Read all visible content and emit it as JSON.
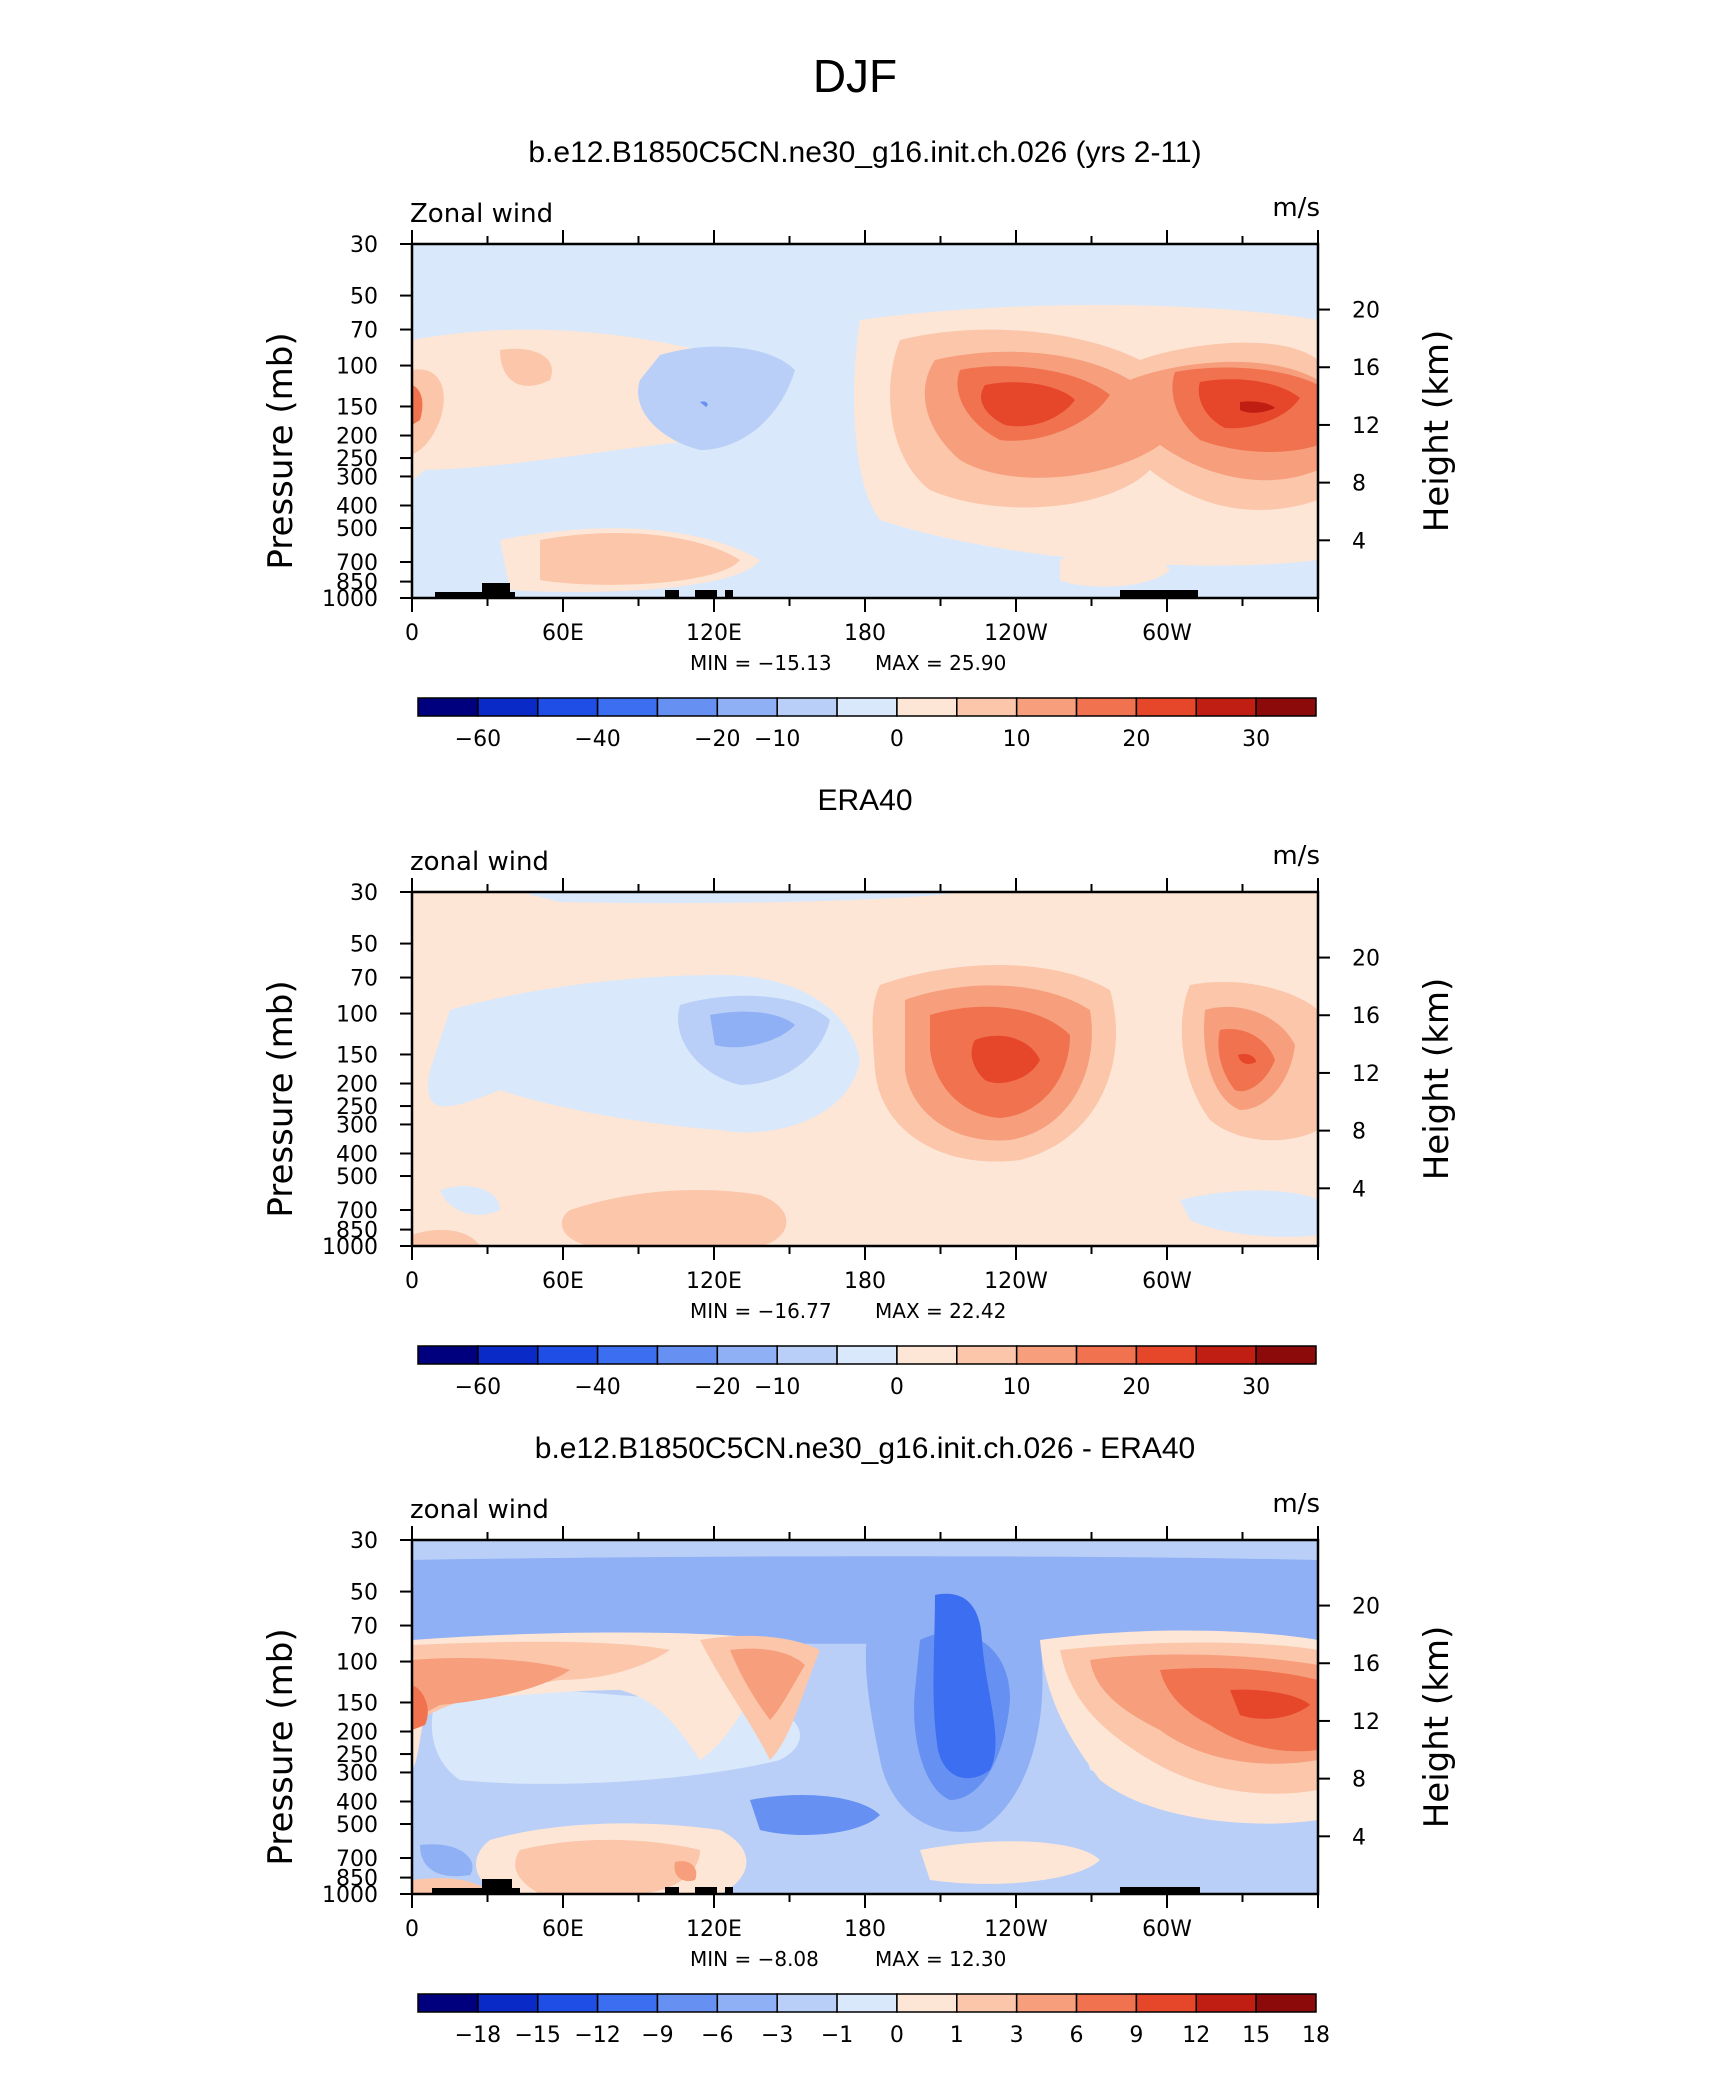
{
  "figure_title": "DJF",
  "colors": {
    "scale": [
      "#00007f",
      "#0a2ac8",
      "#1e4ee6",
      "#3c6ef2",
      "#6690f2",
      "#8fb0f4",
      "#b9cff7",
      "#d9e8fa",
      "#fde6d6",
      "#fbc6aa",
      "#f79e7c",
      "#f1724e",
      "#e6462a",
      "#c01e12",
      "#8c0a0a"
    ]
  },
  "chart_data": [
    {
      "type": "contour",
      "title": "b.e12.B1850C5CN.ne30_g16.init.ch.026 (yrs 2-11)",
      "left_label": "Zonal wind",
      "right_label": "m/s",
      "ylabel": "Pressure (mb)",
      "ylabel2": "Height (km)",
      "xticks": [
        "0",
        "60E",
        "120E",
        "180",
        "120W",
        "60W"
      ],
      "yticks": [
        "30",
        "50",
        "70",
        "100",
        "150",
        "200",
        "250",
        "300",
        "400",
        "500",
        "700",
        "850",
        "1000"
      ],
      "y2ticks": [
        "20",
        "16",
        "12",
        "8",
        "4"
      ],
      "min_label": "MIN = −15.13",
      "max_label": "MAX = 25.90",
      "min": -15.13,
      "max": 25.9,
      "colorbar_labels": [
        "−60",
        "−40",
        "−20",
        "−10",
        "0",
        "10",
        "20",
        "30"
      ]
    },
    {
      "type": "contour",
      "title": "ERA40",
      "left_label": "zonal wind",
      "right_label": "m/s",
      "ylabel": "Pressure (mb)",
      "ylabel2": "Height (km)",
      "xticks": [
        "0",
        "60E",
        "120E",
        "180",
        "120W",
        "60W"
      ],
      "yticks": [
        "30",
        "50",
        "70",
        "100",
        "150",
        "200",
        "250",
        "300",
        "400",
        "500",
        "700",
        "850",
        "1000"
      ],
      "y2ticks": [
        "20",
        "16",
        "12",
        "8",
        "4"
      ],
      "min_label": "MIN = −16.77",
      "max_label": "MAX = 22.42",
      "min": -16.77,
      "max": 22.42,
      "colorbar_labels": [
        "−60",
        "−40",
        "−20",
        "−10",
        "0",
        "10",
        "20",
        "30"
      ]
    },
    {
      "type": "contour",
      "title": "b.e12.B1850C5CN.ne30_g16.init.ch.026 - ERA40",
      "left_label": "zonal wind",
      "right_label": "m/s",
      "ylabel": "Pressure (mb)",
      "ylabel2": "Height (km)",
      "xticks": [
        "0",
        "60E",
        "120E",
        "180",
        "120W",
        "60W"
      ],
      "yticks": [
        "30",
        "50",
        "70",
        "100",
        "150",
        "200",
        "250",
        "300",
        "400",
        "500",
        "700",
        "850",
        "1000"
      ],
      "y2ticks": [
        "20",
        "16",
        "12",
        "8",
        "4"
      ],
      "min_label": "MIN = −8.08",
      "max_label": "MAX = 12.30",
      "min": -8.08,
      "max": 12.3,
      "colorbar_labels": [
        "−18",
        "−15",
        "−12",
        "−9",
        "−6",
        "−3",
        "−1",
        "0",
        "1",
        "3",
        "6",
        "9",
        "12",
        "15",
        "18"
      ]
    }
  ]
}
